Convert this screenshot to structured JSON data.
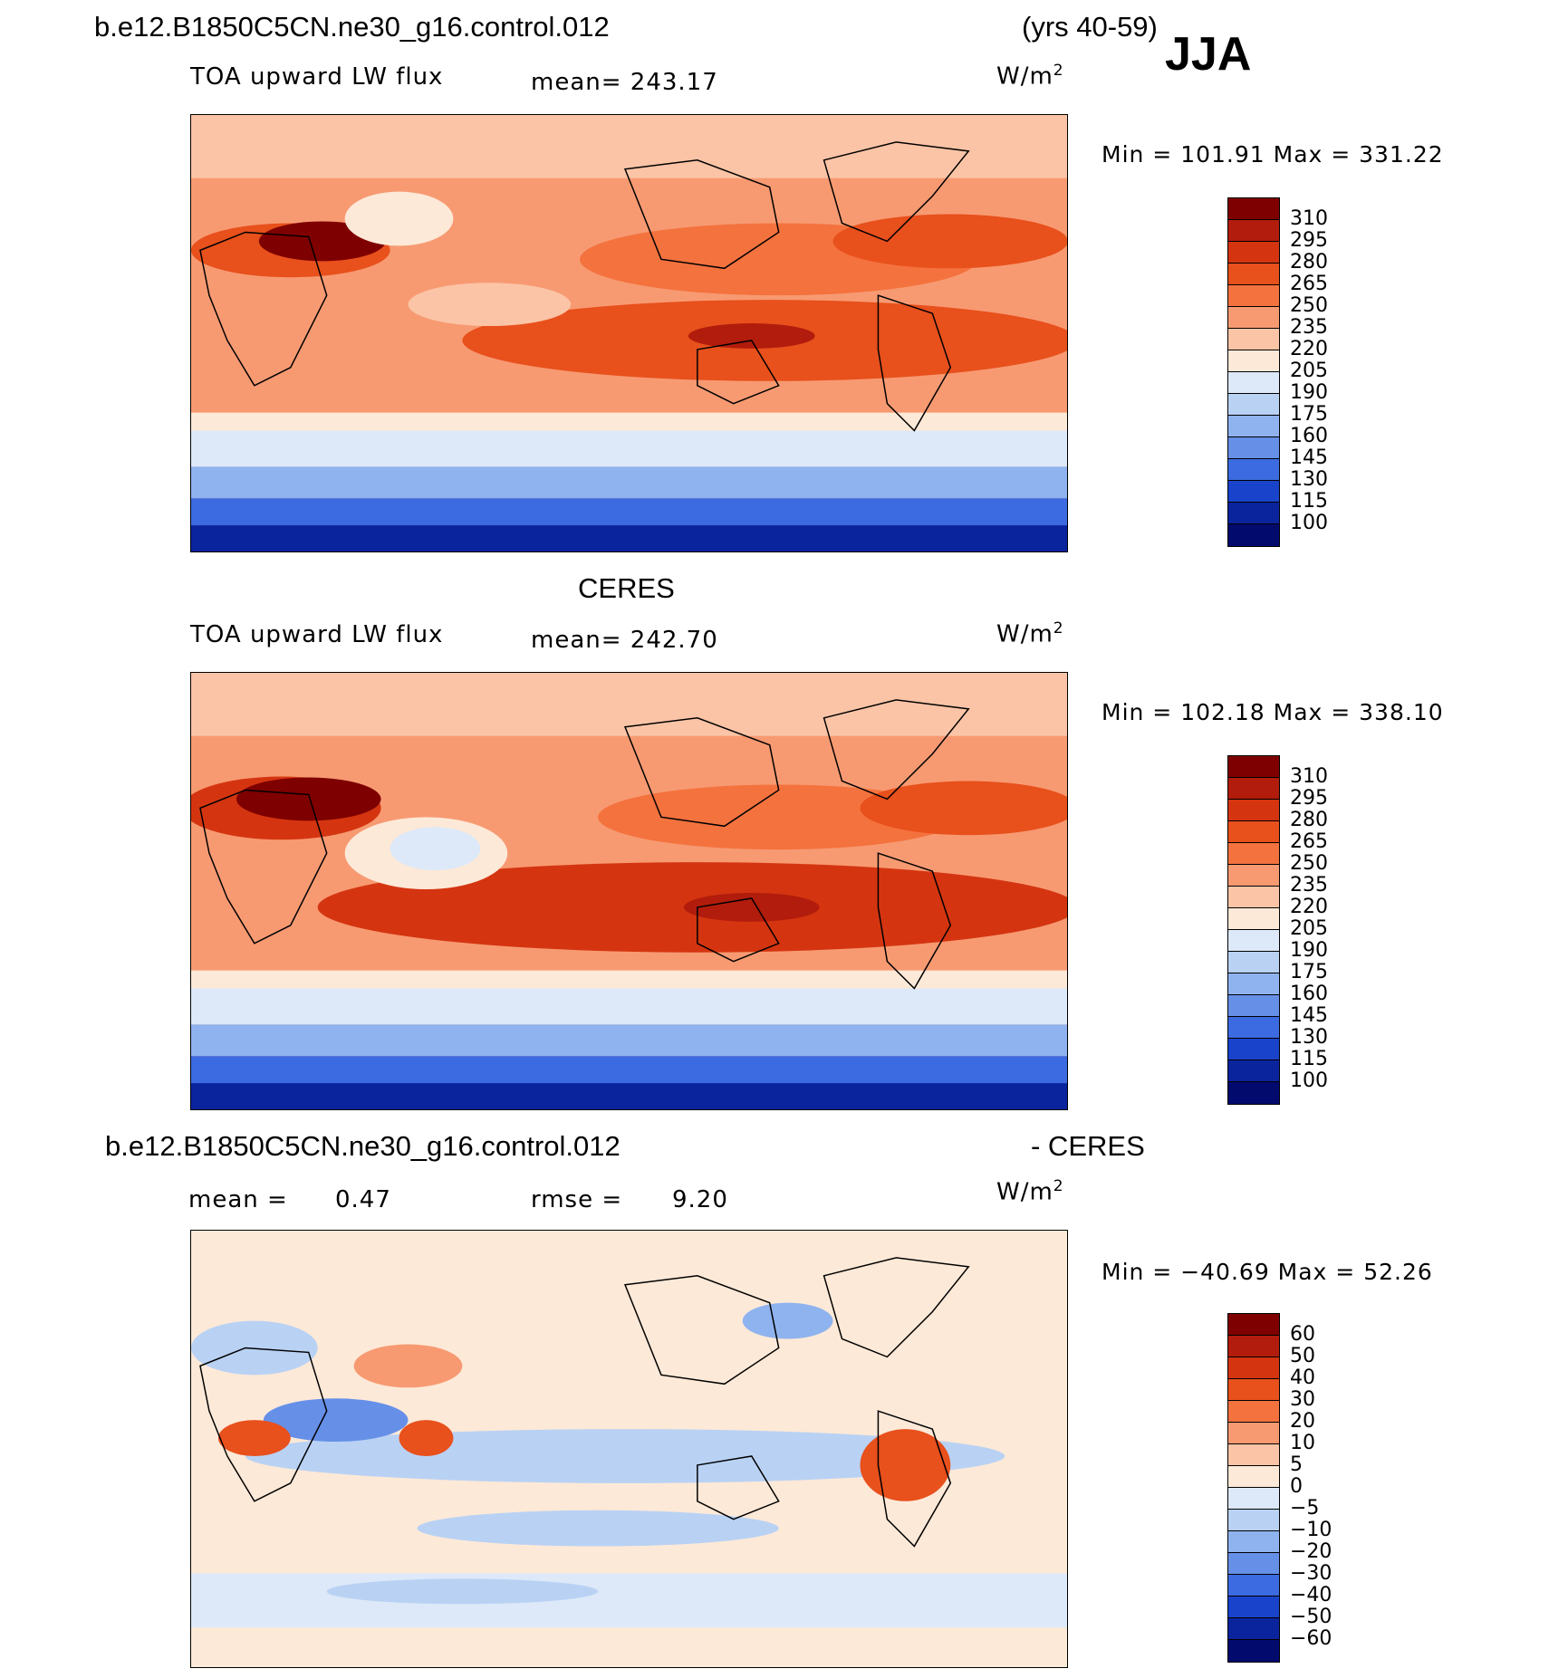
{
  "header": {
    "case_name": "b.e12.B1850C5CN.ne30_g16.control.012",
    "years": "(yrs 40-59)",
    "season": "JJA"
  },
  "panel1": {
    "variable": "TOA upward LW flux",
    "mean": "mean= 243.17",
    "units_base": "W/m",
    "units_exp": "2",
    "stats": "Min  =  101.91  Max  =  331.22"
  },
  "panel2": {
    "title": "CERES",
    "variable": "TOA upward LW flux",
    "mean": "mean= 242.70",
    "units_base": "W/m",
    "units_exp": "2",
    "stats": "Min  =  102.18  Max  =  338.10"
  },
  "panel3": {
    "title_left": "b.e12.B1850C5CN.ne30_g16.control.012",
    "title_right": "- CERES",
    "mean_label": "mean =",
    "mean_value": "0.47",
    "rmse_label": "rmse =",
    "rmse_value": "9.20",
    "units_base": "W/m",
    "units_exp": "2",
    "stats": "Min  =  −40.69  Max  =    52.26"
  },
  "colorbar_abs": {
    "labels": [
      "310",
      "295",
      "280",
      "265",
      "250",
      "235",
      "220",
      "205",
      "190",
      "175",
      "160",
      "145",
      "130",
      "115",
      "100"
    ],
    "colors": [
      "#7f0000",
      "#b21c0c",
      "#d43510",
      "#e8501c",
      "#f4723e",
      "#f79a72",
      "#fbc4a6",
      "#fde9d8",
      "#dde9f8",
      "#b9d2f4",
      "#8fb3ee",
      "#6690e8",
      "#3c6ae0",
      "#1a43cc",
      "#0a249e",
      "#020a6e"
    ]
  },
  "colorbar_diff": {
    "labels": [
      "60",
      "50",
      "40",
      "30",
      "20",
      "10",
      "5",
      "0",
      "−5",
      "−10",
      "−20",
      "−30",
      "−40",
      "−50",
      "−60"
    ],
    "colors": [
      "#7f0000",
      "#b21c0c",
      "#d43510",
      "#e8501c",
      "#f4723e",
      "#f79a72",
      "#fbc4a6",
      "#fde9d8",
      "#dde9f8",
      "#b9d2f4",
      "#8fb3ee",
      "#6690e8",
      "#3c6ae0",
      "#1a43cc",
      "#0a249e",
      "#020a6e"
    ]
  }
}
